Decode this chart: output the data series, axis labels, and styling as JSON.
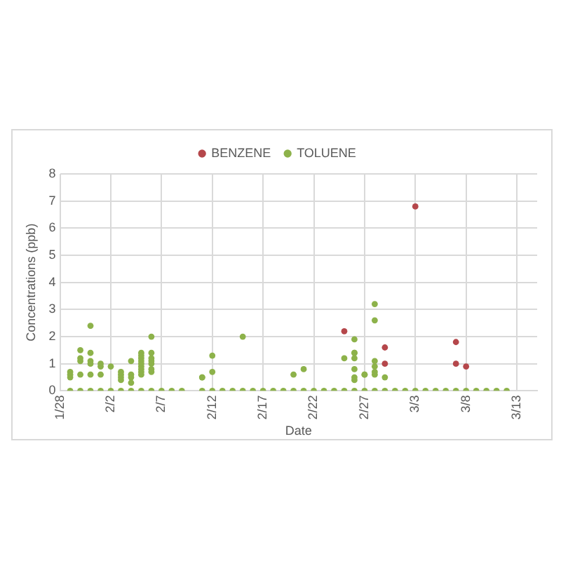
{
  "chart_data": {
    "type": "scatter",
    "xlabel": "Date",
    "ylabel": "Concentrations (ppb)",
    "xlim": [
      "--01-28",
      "--03-15"
    ],
    "xticks": [
      {
        "value": "--01-28",
        "label": "1/28"
      },
      {
        "value": "--02-02",
        "label": "2/2"
      },
      {
        "value": "--02-07",
        "label": "2/7"
      },
      {
        "value": "--02-12",
        "label": "2/12"
      },
      {
        "value": "--02-17",
        "label": "2/17"
      },
      {
        "value": "--02-22",
        "label": "2/22"
      },
      {
        "value": "--02-27",
        "label": "2/27"
      },
      {
        "value": "--03-03",
        "label": "3/3"
      },
      {
        "value": "--03-08",
        "label": "3/8"
      },
      {
        "value": "--03-13",
        "label": "3/13"
      }
    ],
    "ylim": [
      0,
      8
    ],
    "yticks": [
      0,
      1,
      2,
      3,
      4,
      5,
      6,
      7,
      8
    ],
    "grid": true,
    "legend": "top",
    "marker": "circle",
    "series": [
      {
        "name": "BENZENE",
        "color": "#b5474b",
        "x": [
          "--02-25",
          "--02-29",
          "--02-29",
          "--03-03",
          "--03-07",
          "--03-07",
          "--03-08"
        ],
        "values": [
          2.2,
          1.6,
          1.0,
          6.8,
          1.8,
          1.0,
          0.9
        ]
      },
      {
        "name": "TOLUENE",
        "color": "#8db24a",
        "x": [
          "--01-29",
          "--01-29",
          "--01-29",
          "--01-30",
          "--01-30",
          "--01-30",
          "--01-30",
          "--01-31",
          "--01-31",
          "--01-31",
          "--01-31",
          "--01-31",
          "--02-01",
          "--02-01",
          "--02-01",
          "--02-02",
          "--02-03",
          "--02-03",
          "--02-03",
          "--02-03",
          "--02-04",
          "--02-04",
          "--02-04",
          "--02-04",
          "--02-05",
          "--02-05",
          "--02-05",
          "--02-05",
          "--02-05",
          "--02-05",
          "--02-05",
          "--02-05",
          "--02-05",
          "--02-06",
          "--02-06",
          "--02-06",
          "--02-06",
          "--02-06",
          "--02-06",
          "--02-06",
          "--02-11",
          "--02-11",
          "--02-12",
          "--02-12",
          "--02-15",
          "--02-20",
          "--02-21",
          "--02-25",
          "--02-26",
          "--02-26",
          "--02-26",
          "--02-26",
          "--02-26",
          "--02-26",
          "--02-26",
          "--02-27",
          "--02-27",
          "--02-28",
          "--02-28",
          "--02-28",
          "--02-28",
          "--02-28",
          "--02-28",
          "--02-29",
          "--01-29",
          "--01-30",
          "--01-31",
          "--02-01",
          "--02-02",
          "--02-03",
          "--02-04",
          "--02-05",
          "--02-06",
          "--02-07",
          "--02-08",
          "--02-09",
          "--02-11",
          "--02-12",
          "--02-13",
          "--02-14",
          "--02-15",
          "--02-16",
          "--02-17",
          "--02-18",
          "--02-19",
          "--02-20",
          "--02-21",
          "--02-22",
          "--02-23",
          "--02-24",
          "--02-25",
          "--02-26",
          "--02-27",
          "--02-28",
          "--02-29",
          "--03-01",
          "--03-02",
          "--03-03",
          "--03-04",
          "--03-05",
          "--03-06",
          "--03-07",
          "--03-08",
          "--03-09",
          "--03-10",
          "--03-11",
          "--03-12"
        ],
        "values": [
          0.7,
          0.5,
          0.6,
          1.5,
          1.1,
          1.2,
          0.6,
          2.4,
          1.4,
          1.1,
          1.0,
          0.6,
          1.0,
          0.9,
          0.6,
          0.9,
          0.7,
          0.6,
          0.5,
          0.4,
          0.3,
          0.6,
          0.5,
          1.1,
          1.0,
          1.1,
          1.2,
          1.4,
          0.9,
          0.7,
          0.6,
          0.8,
          1.3,
          1.4,
          1.2,
          1.1,
          1.0,
          0.8,
          0.7,
          2.0,
          0.5,
          0.5,
          1.3,
          0.7,
          2.0,
          0.6,
          0.8,
          1.2,
          1.9,
          1.4,
          1.4,
          1.2,
          0.8,
          0.4,
          0.5,
          0.6,
          0.6,
          0.9,
          3.2,
          2.6,
          1.1,
          0.7,
          0.6,
          0.5,
          0,
          0,
          0,
          0,
          0,
          0,
          0,
          0,
          0,
          0,
          0,
          0,
          0,
          0,
          0,
          0,
          0,
          0,
          0,
          0,
          0,
          0,
          0,
          0,
          0,
          0,
          0,
          0,
          0,
          0,
          0,
          0,
          0,
          0,
          0,
          0,
          0,
          0,
          0,
          0,
          0,
          0,
          0
        ]
      }
    ]
  }
}
